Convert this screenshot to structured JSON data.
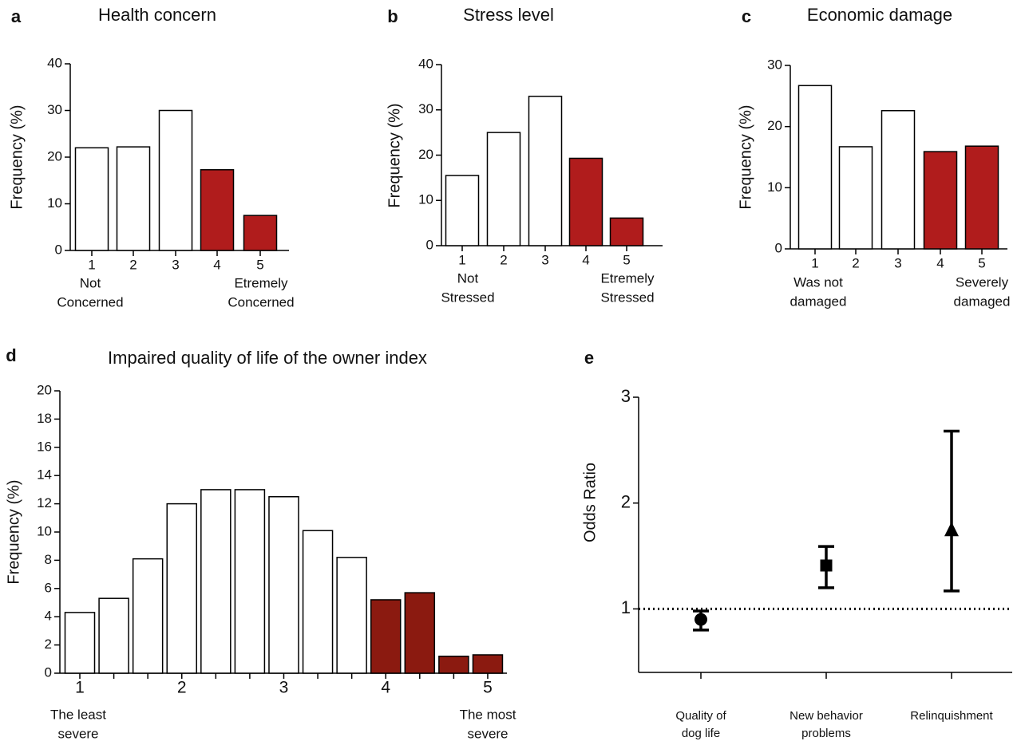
{
  "chart_data": [
    {
      "type": "bar",
      "panel_label": "a",
      "title": "Health concern",
      "y_label": "Frequency (%)",
      "categories": [
        "1",
        "2",
        "3",
        "4",
        "5"
      ],
      "values": [
        22,
        22.2,
        30,
        17.3,
        7.5
      ],
      "colors": [
        "#ffffff",
        "#ffffff",
        "#ffffff",
        "#b01c1c",
        "#b01c1c"
      ],
      "ylim": [
        0,
        40
      ],
      "yticks": [
        0,
        10,
        20,
        30,
        40
      ],
      "axis_end_labels": {
        "left": [
          "Not",
          "Concerned"
        ],
        "right": [
          "Etremely",
          "Concerned"
        ]
      }
    },
    {
      "type": "bar",
      "panel_label": "b",
      "title": "Stress level",
      "y_label": "Frequency (%)",
      "categories": [
        "1",
        "2",
        "3",
        "4",
        "5"
      ],
      "values": [
        15.5,
        25,
        33,
        19.3,
        6.1
      ],
      "colors": [
        "#ffffff",
        "#ffffff",
        "#ffffff",
        "#b01c1c",
        "#b01c1c"
      ],
      "ylim": [
        0,
        40
      ],
      "yticks": [
        0,
        10,
        20,
        30,
        40
      ],
      "axis_end_labels": {
        "left": [
          "Not",
          "Stressed"
        ],
        "right": [
          "Etremely",
          "Stressed"
        ]
      }
    },
    {
      "type": "bar",
      "panel_label": "c",
      "title": "Economic damage",
      "y_label": "Frequency (%)",
      "categories": [
        "1",
        "2",
        "3",
        "4",
        "5"
      ],
      "values": [
        26.7,
        16.7,
        22.6,
        15.9,
        16.8
      ],
      "colors": [
        "#ffffff",
        "#ffffff",
        "#ffffff",
        "#b01c1c",
        "#b01c1c"
      ],
      "ylim": [
        0,
        30
      ],
      "yticks": [
        0,
        10,
        20,
        30
      ],
      "axis_end_labels": {
        "left": [
          "Was not",
          "damaged"
        ],
        "right": [
          "Severely",
          "damaged"
        ]
      }
    },
    {
      "type": "bar",
      "panel_label": "d",
      "title": "Impaired quality of life of the owner index",
      "y_label": "Frequency (%)",
      "categories": [
        "1",
        null,
        null,
        "2",
        null,
        null,
        "3",
        null,
        null,
        "4",
        null,
        null,
        "5"
      ],
      "values": [
        4.3,
        5.3,
        8.1,
        12,
        13,
        13,
        12.5,
        10.1,
        8.2,
        5.2,
        5.7,
        1.2,
        1.3
      ],
      "colors": [
        "#ffffff",
        "#ffffff",
        "#ffffff",
        "#ffffff",
        "#ffffff",
        "#ffffff",
        "#ffffff",
        "#ffffff",
        "#ffffff",
        "#8b1a10",
        "#8b1a10",
        "#8b1a10",
        "#8b1a10"
      ],
      "ylim": [
        0,
        20
      ],
      "yticks": [
        0,
        2,
        4,
        6,
        8,
        10,
        12,
        14,
        16,
        18,
        20
      ],
      "axis_end_labels": {
        "left": [
          "The least",
          "severe"
        ],
        "right": [
          "The most",
          "severe"
        ]
      }
    },
    {
      "type": "errorpoint",
      "panel_label": "e",
      "y_label": "Odds Ratio",
      "categories": [
        [
          "Quality of",
          "dog life"
        ],
        [
          "New behavior",
          "problems"
        ],
        [
          "Relinquishment"
        ]
      ],
      "values": [
        0.9,
        1.41,
        1.74
      ],
      "lower": [
        0.8,
        1.2,
        1.17
      ],
      "upper": [
        0.98,
        1.59,
        2.68
      ],
      "markers": [
        "circle",
        "square",
        "triangle"
      ],
      "color": "#000000",
      "ylim": [
        0.4,
        3
      ],
      "yticks": [
        1,
        2,
        3
      ],
      "hline": 1
    }
  ]
}
